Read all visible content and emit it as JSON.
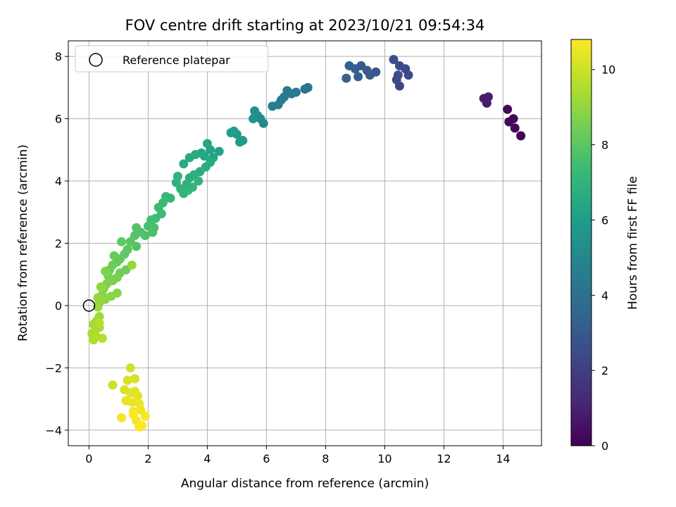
{
  "chart_data": {
    "type": "scatter",
    "title": "FOV centre drift starting at 2023/10/21 09:54:34",
    "xlabel": "Angular distance from reference (arcmin)",
    "ylabel": "Rotation from reference (arcmin)",
    "xlim": [
      -0.7,
      15.3
    ],
    "ylim": [
      -4.5,
      8.5
    ],
    "xticks": [
      0,
      2,
      4,
      6,
      8,
      10,
      12,
      14
    ],
    "yticks": [
      -4,
      -2,
      0,
      2,
      4,
      6,
      8
    ],
    "grid": true,
    "legend": {
      "placement": "top-left",
      "entries": [
        "Reference platepar"
      ]
    },
    "reference": {
      "x": 0,
      "y": 0
    },
    "colorbar": {
      "label": "Hours from first FF file",
      "range": [
        0,
        10.8
      ],
      "ticks": [
        0,
        2,
        4,
        6,
        8,
        10
      ],
      "colormap": "viridis"
    },
    "points": [
      {
        "x": 14.6,
        "y": 5.45,
        "h": 0.0
      },
      {
        "x": 14.4,
        "y": 5.7,
        "h": 0.1
      },
      {
        "x": 14.35,
        "y": 6.0,
        "h": 0.15
      },
      {
        "x": 14.2,
        "y": 5.9,
        "h": 0.2
      },
      {
        "x": 14.15,
        "y": 6.3,
        "h": 0.25
      },
      {
        "x": 13.5,
        "y": 6.7,
        "h": 0.8
      },
      {
        "x": 13.45,
        "y": 6.5,
        "h": 0.85
      },
      {
        "x": 13.35,
        "y": 6.65,
        "h": 0.9
      },
      {
        "x": 10.5,
        "y": 7.05,
        "h": 2.3
      },
      {
        "x": 10.4,
        "y": 7.25,
        "h": 2.35
      },
      {
        "x": 10.8,
        "y": 7.4,
        "h": 2.4
      },
      {
        "x": 10.7,
        "y": 7.6,
        "h": 2.45
      },
      {
        "x": 10.5,
        "y": 7.7,
        "h": 2.5
      },
      {
        "x": 10.3,
        "y": 7.9,
        "h": 2.55
      },
      {
        "x": 10.45,
        "y": 7.4,
        "h": 2.6
      },
      {
        "x": 9.7,
        "y": 7.5,
        "h": 3.0
      },
      {
        "x": 9.5,
        "y": 7.4,
        "h": 3.05
      },
      {
        "x": 9.4,
        "y": 7.55,
        "h": 3.1
      },
      {
        "x": 9.2,
        "y": 7.7,
        "h": 3.15
      },
      {
        "x": 9.0,
        "y": 7.6,
        "h": 3.2
      },
      {
        "x": 9.1,
        "y": 7.35,
        "h": 3.25
      },
      {
        "x": 8.8,
        "y": 7.7,
        "h": 3.3
      },
      {
        "x": 8.7,
        "y": 7.3,
        "h": 3.35
      },
      {
        "x": 7.4,
        "y": 7.0,
        "h": 4.2
      },
      {
        "x": 7.3,
        "y": 6.95,
        "h": 4.25
      },
      {
        "x": 7.0,
        "y": 6.85,
        "h": 4.3
      },
      {
        "x": 6.85,
        "y": 6.8,
        "h": 4.35
      },
      {
        "x": 6.7,
        "y": 6.9,
        "h": 4.4
      },
      {
        "x": 6.6,
        "y": 6.7,
        "h": 4.45
      },
      {
        "x": 6.5,
        "y": 6.6,
        "h": 4.5
      },
      {
        "x": 6.4,
        "y": 6.45,
        "h": 4.55
      },
      {
        "x": 6.2,
        "y": 6.4,
        "h": 4.6
      },
      {
        "x": 5.9,
        "y": 5.85,
        "h": 5.2
      },
      {
        "x": 5.8,
        "y": 6.0,
        "h": 5.25
      },
      {
        "x": 5.7,
        "y": 6.1,
        "h": 5.3
      },
      {
        "x": 5.6,
        "y": 6.25,
        "h": 5.35
      },
      {
        "x": 5.55,
        "y": 6.0,
        "h": 5.4
      },
      {
        "x": 5.1,
        "y": 5.25,
        "h": 5.8
      },
      {
        "x": 5.2,
        "y": 5.3,
        "h": 5.85
      },
      {
        "x": 5.0,
        "y": 5.5,
        "h": 5.9
      },
      {
        "x": 4.9,
        "y": 5.6,
        "h": 5.95
      },
      {
        "x": 4.8,
        "y": 5.55,
        "h": 6.0
      },
      {
        "x": 4.4,
        "y": 4.95,
        "h": 6.2
      },
      {
        "x": 4.2,
        "y": 4.75,
        "h": 6.25
      },
      {
        "x": 4.1,
        "y": 5.0,
        "h": 6.3
      },
      {
        "x": 4.0,
        "y": 5.2,
        "h": 6.35
      },
      {
        "x": 3.9,
        "y": 4.8,
        "h": 6.4
      },
      {
        "x": 3.8,
        "y": 4.9,
        "h": 6.45
      },
      {
        "x": 3.6,
        "y": 4.85,
        "h": 6.5
      },
      {
        "x": 3.4,
        "y": 4.75,
        "h": 6.55
      },
      {
        "x": 3.2,
        "y": 4.55,
        "h": 6.6
      },
      {
        "x": 4.1,
        "y": 4.6,
        "h": 6.6
      },
      {
        "x": 3.95,
        "y": 4.45,
        "h": 6.65
      },
      {
        "x": 3.75,
        "y": 4.3,
        "h": 6.7
      },
      {
        "x": 3.55,
        "y": 4.2,
        "h": 6.75
      },
      {
        "x": 3.4,
        "y": 4.1,
        "h": 6.8
      },
      {
        "x": 3.3,
        "y": 3.9,
        "h": 6.85
      },
      {
        "x": 3.1,
        "y": 3.75,
        "h": 6.9
      },
      {
        "x": 2.95,
        "y": 3.95,
        "h": 6.95
      },
      {
        "x": 3.0,
        "y": 4.15,
        "h": 7.0
      },
      {
        "x": 3.2,
        "y": 3.6,
        "h": 7.0
      },
      {
        "x": 3.7,
        "y": 4.0,
        "h": 7.05
      },
      {
        "x": 3.5,
        "y": 3.8,
        "h": 7.1
      },
      {
        "x": 3.35,
        "y": 3.7,
        "h": 7.15
      },
      {
        "x": 2.75,
        "y": 3.45,
        "h": 7.2
      },
      {
        "x": 2.6,
        "y": 3.5,
        "h": 7.25
      },
      {
        "x": 2.5,
        "y": 3.3,
        "h": 7.3
      },
      {
        "x": 2.35,
        "y": 3.15,
        "h": 7.35
      },
      {
        "x": 2.45,
        "y": 2.95,
        "h": 7.4
      },
      {
        "x": 2.25,
        "y": 2.8,
        "h": 7.45
      },
      {
        "x": 2.1,
        "y": 2.75,
        "h": 7.5
      },
      {
        "x": 2.0,
        "y": 2.55,
        "h": 7.55
      },
      {
        "x": 2.2,
        "y": 2.5,
        "h": 7.6
      },
      {
        "x": 2.15,
        "y": 2.35,
        "h": 7.65
      },
      {
        "x": 1.9,
        "y": 2.25,
        "h": 7.7
      },
      {
        "x": 1.75,
        "y": 2.35,
        "h": 7.75
      },
      {
        "x": 1.6,
        "y": 2.5,
        "h": 7.8
      },
      {
        "x": 1.55,
        "y": 2.25,
        "h": 7.85
      },
      {
        "x": 1.6,
        "y": 1.9,
        "h": 7.9
      },
      {
        "x": 1.4,
        "y": 2.05,
        "h": 7.95
      },
      {
        "x": 1.3,
        "y": 1.8,
        "h": 8.0
      },
      {
        "x": 1.2,
        "y": 1.65,
        "h": 8.05
      },
      {
        "x": 1.1,
        "y": 2.05,
        "h": 8.1
      },
      {
        "x": 1.05,
        "y": 1.5,
        "h": 8.15
      },
      {
        "x": 0.95,
        "y": 1.4,
        "h": 8.2
      },
      {
        "x": 0.85,
        "y": 1.6,
        "h": 8.25
      },
      {
        "x": 0.8,
        "y": 1.3,
        "h": 8.3
      },
      {
        "x": 0.7,
        "y": 1.15,
        "h": 8.35
      },
      {
        "x": 1.25,
        "y": 1.15,
        "h": 8.4
      },
      {
        "x": 1.05,
        "y": 1.05,
        "h": 8.45
      },
      {
        "x": 0.95,
        "y": 0.9,
        "h": 8.5
      },
      {
        "x": 0.8,
        "y": 0.8,
        "h": 8.55
      },
      {
        "x": 0.65,
        "y": 0.95,
        "h": 8.6
      },
      {
        "x": 0.55,
        "y": 1.1,
        "h": 8.65
      },
      {
        "x": 0.6,
        "y": 0.7,
        "h": 8.7
      },
      {
        "x": 0.5,
        "y": 0.55,
        "h": 8.75
      },
      {
        "x": 0.45,
        "y": 0.35,
        "h": 8.8
      },
      {
        "x": 0.95,
        "y": 0.4,
        "h": 8.85
      },
      {
        "x": 0.75,
        "y": 0.3,
        "h": 8.9
      },
      {
        "x": 0.55,
        "y": 0.2,
        "h": 8.95
      },
      {
        "x": 0.4,
        "y": 0.6,
        "h": 9.0
      },
      {
        "x": 0.35,
        "y": 0.1,
        "h": 9.05
      },
      {
        "x": 0.3,
        "y": 0.25,
        "h": 9.1
      },
      {
        "x": 1.45,
        "y": 1.3,
        "h": 9.1
      },
      {
        "x": 0.3,
        "y": -0.05,
        "h": 9.15
      },
      {
        "x": 0.35,
        "y": -0.35,
        "h": 9.2
      },
      {
        "x": 0.25,
        "y": -0.5,
        "h": 9.25
      },
      {
        "x": 0.15,
        "y": -0.6,
        "h": 9.3
      },
      {
        "x": 0.35,
        "y": -0.7,
        "h": 9.35
      },
      {
        "x": 0.2,
        "y": -0.8,
        "h": 9.4
      },
      {
        "x": 0.1,
        "y": -0.9,
        "h": 9.45
      },
      {
        "x": 0.25,
        "y": -1.0,
        "h": 9.5
      },
      {
        "x": 0.15,
        "y": -1.1,
        "h": 9.55
      },
      {
        "x": 0.45,
        "y": -1.05,
        "h": 9.6
      },
      {
        "x": 0.35,
        "y": -0.55,
        "h": 9.65
      },
      {
        "x": 0.8,
        "y": -2.55,
        "h": 10.0
      },
      {
        "x": 1.4,
        "y": -2.0,
        "h": 10.05
      },
      {
        "x": 1.55,
        "y": -2.35,
        "h": 10.1
      },
      {
        "x": 1.3,
        "y": -2.4,
        "h": 10.15
      },
      {
        "x": 1.2,
        "y": -2.7,
        "h": 10.2
      },
      {
        "x": 1.4,
        "y": -2.8,
        "h": 10.25
      },
      {
        "x": 1.55,
        "y": -2.75,
        "h": 10.3
      },
      {
        "x": 1.65,
        "y": -2.9,
        "h": 10.35
      },
      {
        "x": 1.25,
        "y": -3.05,
        "h": 10.4
      },
      {
        "x": 1.45,
        "y": -3.1,
        "h": 10.45
      },
      {
        "x": 1.7,
        "y": -3.15,
        "h": 10.5
      },
      {
        "x": 1.75,
        "y": -3.35,
        "h": 10.55
      },
      {
        "x": 1.5,
        "y": -3.4,
        "h": 10.6
      },
      {
        "x": 1.1,
        "y": -3.6,
        "h": 10.65
      },
      {
        "x": 1.9,
        "y": -3.55,
        "h": 10.7
      },
      {
        "x": 1.6,
        "y": -3.7,
        "h": 10.72
      },
      {
        "x": 1.7,
        "y": -3.9,
        "h": 10.75
      },
      {
        "x": 1.5,
        "y": -3.5,
        "h": 10.78
      },
      {
        "x": 1.8,
        "y": -3.85,
        "h": 10.8
      }
    ]
  }
}
